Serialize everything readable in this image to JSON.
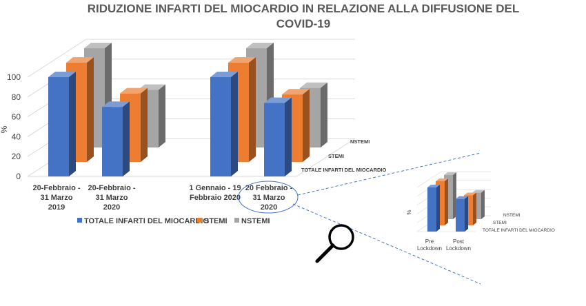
{
  "chart_data": [
    {
      "type": "bar",
      "title": "RIDUZIONE INFARTI DEL MIOCARDIO IN RELAZIONE ALLA DIFFUSIONE DEL COVID-19",
      "title_lines": [
        "RIDUZIONE INFARTI DEL MIOCARDIO IN RELAZIONE ALLA DIFFUSIONE DEL",
        "COVID-19"
      ],
      "ylabel": "%",
      "ylim": [
        0,
        100
      ],
      "yticks": [
        0,
        20,
        40,
        60,
        80,
        100
      ],
      "categories": [
        [
          "20-Febbraio -",
          "31 Marzo",
          "2019"
        ],
        [
          "20-Febbraio -",
          "31 Marzo",
          "2020"
        ],
        [
          "1 Gennaio - 19",
          "Febbraio 2020"
        ],
        [
          "20 Febbraio -",
          "31 Marzo",
          "2020"
        ]
      ],
      "series": [
        {
          "name": "TOTALE INFARTI DEL MIOCARDIO",
          "values": [
            100,
            70,
            100,
            74
          ],
          "color": "#4472C4"
        },
        {
          "name": "STEMI",
          "values": [
            100,
            69,
            100,
            68
          ],
          "color": "#ED7D31"
        },
        {
          "name": "NSTEMI",
          "values": [
            100,
            58,
            100,
            60
          ],
          "color": "#A5A5A5"
        }
      ],
      "legend_position": "bottom",
      "grid": true
    },
    {
      "type": "bar",
      "ylabel": "%",
      "categories": [
        [
          "Pre",
          "Lockdown"
        ],
        [
          "Post",
          "Lockdown"
        ]
      ],
      "series": [
        {
          "name": "TOTALE INFARTI DEL MIOCARDIO",
          "values": [
            100,
            74
          ],
          "color": "#4472C4"
        },
        {
          "name": "STEMI",
          "values": [
            100,
            68
          ],
          "color": "#ED7D31"
        },
        {
          "name": "NSTEMI",
          "values": [
            100,
            60
          ],
          "color": "#A5A5A5"
        }
      ],
      "grid": true
    }
  ],
  "icons": {
    "zoom": "magnifier-icon"
  }
}
